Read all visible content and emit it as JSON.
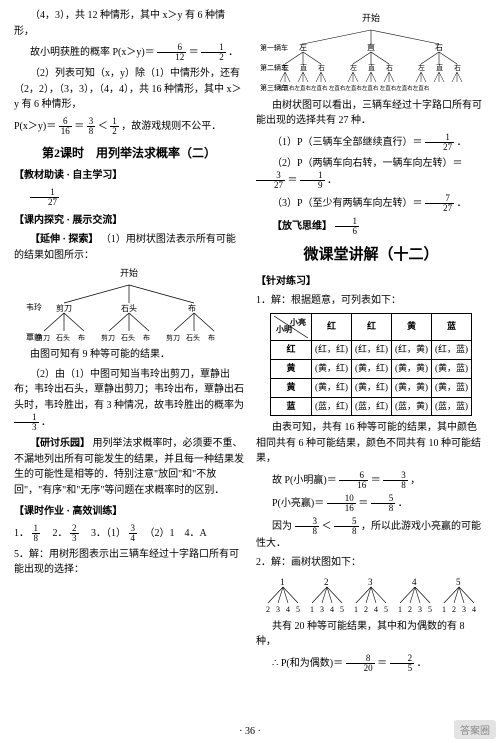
{
  "left": {
    "p1": "（4，3），共 12 种情形，其中 x＞y 有 6 种情形，",
    "p2a": "故小明获胜的概率 P(x＞y)＝",
    "p2f": {
      "n": "6",
      "d": "12"
    },
    "p2b": "＝",
    "p2g": {
      "n": "1",
      "d": "2"
    },
    "p2c": "．",
    "p3": "（2）列表可知（x，y）除（1）中情形外，还有（2，2），（3，3），（4，4），共 16 种情形，其中 x＞y 有 6 种情形，",
    "p4a": "P(x＞y)＝",
    "p4f1": {
      "n": "6",
      "d": "16"
    },
    "p4b": "＝",
    "p4f2": {
      "n": "3",
      "d": "8"
    },
    "p4c": "＜",
    "p4f3": {
      "n": "1",
      "d": "2"
    },
    "p4d": "，故游戏规则不公平．",
    "title2": "第2课时　用列举法求概率（二）",
    "s1": "【教材助读 · 自主学习】",
    "s1v": {
      "n": "1",
      "d": "27"
    },
    "s2": "【课内探究 · 展示交流】",
    "s2a": "【延伸 · 探索】",
    "s2b": "（1）用树状图法表示所有可能的结果如图所示：",
    "treeTop": "开始",
    "treeLeft": "韦玲",
    "treeMid": [
      "剪刀",
      "石头",
      "布"
    ],
    "treeBot": "覃静",
    "treeLeaves": [
      "剪刀",
      "石头",
      "布",
      "剪刀",
      "石头",
      "布",
      "剪刀",
      "石头",
      "布"
    ],
    "s2c": "由图可知有 9 种等可能的结果．",
    "s2d": "（2）由（1）中图可知当韦玲出剪刀，覃静出布；韦玲出石头，覃静出剪刀；韦玲出布，覃静出石头时，韦玲胜出，有 3 种情况，故韦玲胜出的概率为",
    "s2df": {
      "n": "1",
      "d": "3"
    },
    "s2de": "．",
    "s3": "【研讨乐园】",
    "s3t": "用列举法求概率时，必须要不重、不漏地列出所有可能发生的结果，并且每一种结果发生的可能性是相等的．特别注意\"放回\"和\"不放回\"，\"有序\"和\"无序\"等问题在求概率时的区别．",
    "s4": "【课时作业 · 高效训练】",
    "hw1a": "1．",
    "hw1f": {
      "n": "1",
      "d": "8"
    },
    "hw2a": "　2．",
    "hw2f": {
      "n": "2",
      "d": "3"
    },
    "hw3a": "　3．（1）",
    "hw3f": {
      "n": "3",
      "d": "4"
    },
    "hw3b": "　（2）1　4．A",
    "hw5": "5．解：用树形图表示出三辆车经过十字路口所有可能出现的选择："
  },
  "right": {
    "treeTop": "开始",
    "rows": [
      {
        "h": "红",
        "c": [
          "(红，红)",
          "(红，红)",
          "(红，黄)",
          "(红，蓝)"
        ]
      },
      {
        "h": "黄",
        "c": [
          "(黄，红)",
          "(黄，红)",
          "(黄，黄)",
          "(黄，蓝)"
        ]
      },
      {
        "h": "黄",
        "c": [
          "(黄，红)",
          "(黄，红)",
          "(黄，黄)",
          "(黄，蓝)"
        ]
      },
      {
        "h": "蓝",
        "c": [
          "(蓝，红)",
          "(蓝，红)",
          "(蓝，黄)",
          "(蓝，蓝)"
        ]
      }
    ],
    "dirs": [
      "左",
      "直",
      "右"
    ],
    "p1": "由树状图可以看出，三辆车经过十字路口所有可能出现的选择共有 27 种．",
    "p2a": "（1）P（三辆车全部继续直行）＝",
    "p2f": {
      "n": "1",
      "d": "27"
    },
    "p2b": "．",
    "p3a": "（2）P（两辆车向右转，一辆车向左转）＝",
    "p3f1": {
      "n": "3",
      "d": "27"
    },
    "p3b": "＝",
    "p3f2": {
      "n": "1",
      "d": "9"
    },
    "p3c": "．",
    "p4a": "（3）P（至少有两辆车向左转）＝",
    "p4f": {
      "n": "7",
      "d": "27"
    },
    "p4b": "．",
    "s5": "【放飞思维】",
    "s5f": {
      "n": "1",
      "d": "6"
    },
    "title3": "微课堂讲解（十二）",
    "s6": "【针对练习】",
    "t1": "1．解：根据题意，可列表如下：",
    "th": {
      "rowName": "小明",
      "colName": "小亮",
      "cols": [
        "红",
        "红",
        "黄",
        "蓝"
      ]
    },
    "t2": "由表可知，共有 16 种等可能的结果，其中颜色相同共有 6 种可能结果，颜色不同共有 10 种可能结果，",
    "t3a": "故 P(小明赢)＝",
    "t3f1": {
      "n": "6",
      "d": "16"
    },
    "t3b": "＝",
    "t3f2": {
      "n": "3",
      "d": "8"
    },
    "t3c": "，",
    "t4a": "P(小亮赢)＝",
    "t4f1": {
      "n": "10",
      "d": "16"
    },
    "t4b": "＝",
    "t4f2": {
      "n": "5",
      "d": "8"
    },
    "t4c": "．",
    "t5a": "因为",
    "t5f1": {
      "n": "3",
      "d": "8"
    },
    "t5b": "＜",
    "t5f2": {
      "n": "5",
      "d": "8"
    },
    "t5c": "，所以此游戏小亮赢的可能性大．",
    "t6": "2．解：画树状图如下：",
    "tree2": {
      "roots": [
        "1",
        "2",
        "3",
        "4",
        "5"
      ],
      "leaves": [
        [
          "2",
          "3",
          "4",
          "5"
        ],
        [
          "1",
          "3",
          "4",
          "5"
        ],
        [
          "1",
          "2",
          "4",
          "5"
        ],
        [
          "1",
          "2",
          "3",
          "5"
        ],
        [
          "1",
          "2",
          "3",
          "4"
        ]
      ]
    },
    "t7": "共有 20 种等可能结果，其中和为偶数的有 8 种，",
    "t8a": "∴ P(和为偶数)＝",
    "t8f1": {
      "n": "8",
      "d": "20"
    },
    "t8b": "＝",
    "t8f2": {
      "n": "2",
      "d": "5"
    },
    "t8c": "．"
  },
  "pagenum": "· 36 ·",
  "watermark": "答案圈"
}
